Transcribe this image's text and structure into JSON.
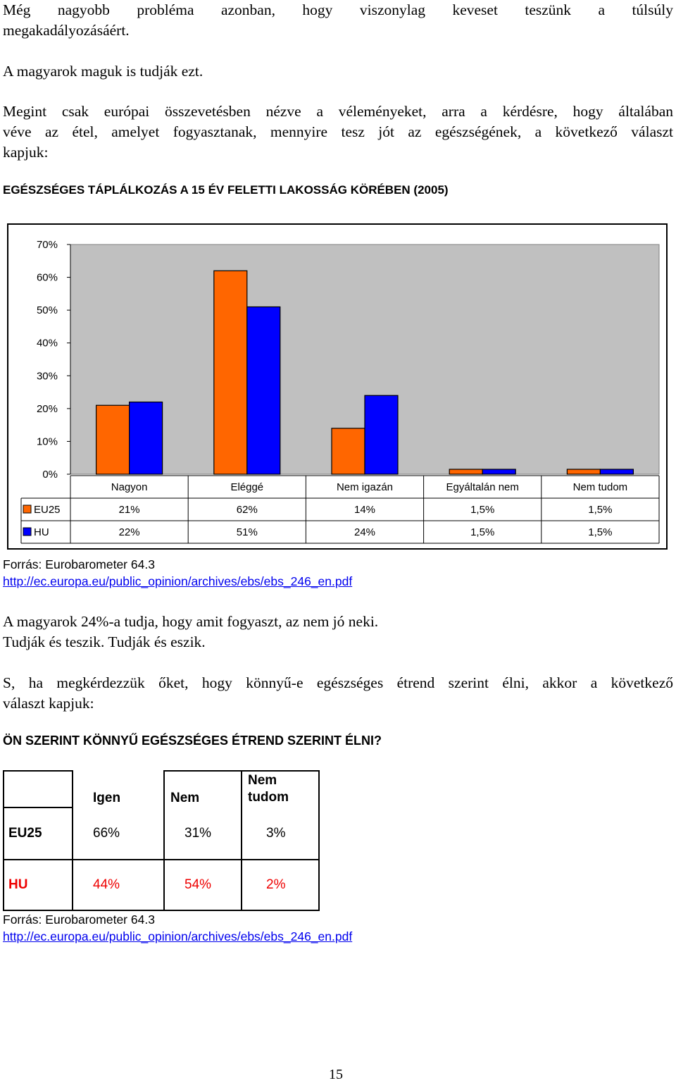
{
  "paragraphs": {
    "p1_line1": "Még nagyobb probléma azonban, hogy viszonylag keveset teszünk a túlsúly",
    "p1_line2": "megakadályozásáért.",
    "p2": "A magyarok maguk is tudják ezt.",
    "p3_line1": "Megint csak európai összevetésben nézve a véleményeket, arra a kérdésre, hogy általában",
    "p3_line2": "véve az étel, amelyet fogyasztanak, mennyire tesz jót az egészségének, a következő választ",
    "p3_line3": "kapjuk:",
    "p4_line1": "A magyarok 24%-a tudja, hogy amit fogyaszt, az nem jó neki.",
    "p4_line2": "Tudják és teszik. Tudják és eszik.",
    "p5_line1": "S, ha megkérdezzük őket, hogy könnyű-e egészséges étrend szerint élni, akkor a következő",
    "p5_line2": "választ kapjuk:"
  },
  "headings": {
    "chart_heading": "EGÉSZSÉGES TÁPLÁLKOZÁS A 15 ÉV FELETTI LAKOSSÁG KÖRÉBEN (2005)",
    "table_heading": "ÖN SZERINT KÖNNYŰ EGÉSZSÉGES ÉTREND SZERINT ÉLNI?"
  },
  "source": {
    "label": "Forrás: Eurobarometer 64.3",
    "url": "http://ec.europa.eu/public_opinion/archives/ebs/ebs_246_en.pdf"
  },
  "colors": {
    "eu25": "#ff6600",
    "hu": "#0000ff",
    "plot_bg": "#c0c0c0",
    "hu_text": "#ee0000"
  },
  "chart_data": {
    "type": "bar",
    "categories": [
      "Nagyon",
      "Eléggé",
      "Nem igazán",
      "Egyáltalán nem",
      "Nem tudom"
    ],
    "series": [
      {
        "name": "EU25",
        "values": [
          21,
          62,
          14,
          1.5,
          1.5
        ],
        "labels": [
          "21%",
          "62%",
          "14%",
          "1,5%",
          "1,5%"
        ],
        "color": "#ff6600"
      },
      {
        "name": "HU",
        "values": [
          22,
          51,
          24,
          1.5,
          1.5
        ],
        "labels": [
          "22%",
          "51%",
          "24%",
          "1,5%",
          "1,5%"
        ],
        "color": "#0000ff"
      }
    ],
    "ylim": [
      0,
      70
    ],
    "yticks": [
      "0%",
      "10%",
      "20%",
      "30%",
      "40%",
      "50%",
      "60%",
      "70%"
    ],
    "grid": false,
    "legend": "data-table-below"
  },
  "table": {
    "headers": [
      "",
      "Igen",
      "Nem",
      "Nem"
    ],
    "header_line2": [
      "",
      "",
      "",
      "tudom"
    ],
    "rows": [
      {
        "label": "EU25",
        "values": [
          "66%",
          "31%",
          "3%"
        ]
      },
      {
        "label": "HU",
        "values": [
          "44%",
          "54%",
          "2%"
        ]
      }
    ]
  },
  "page_number": "15"
}
